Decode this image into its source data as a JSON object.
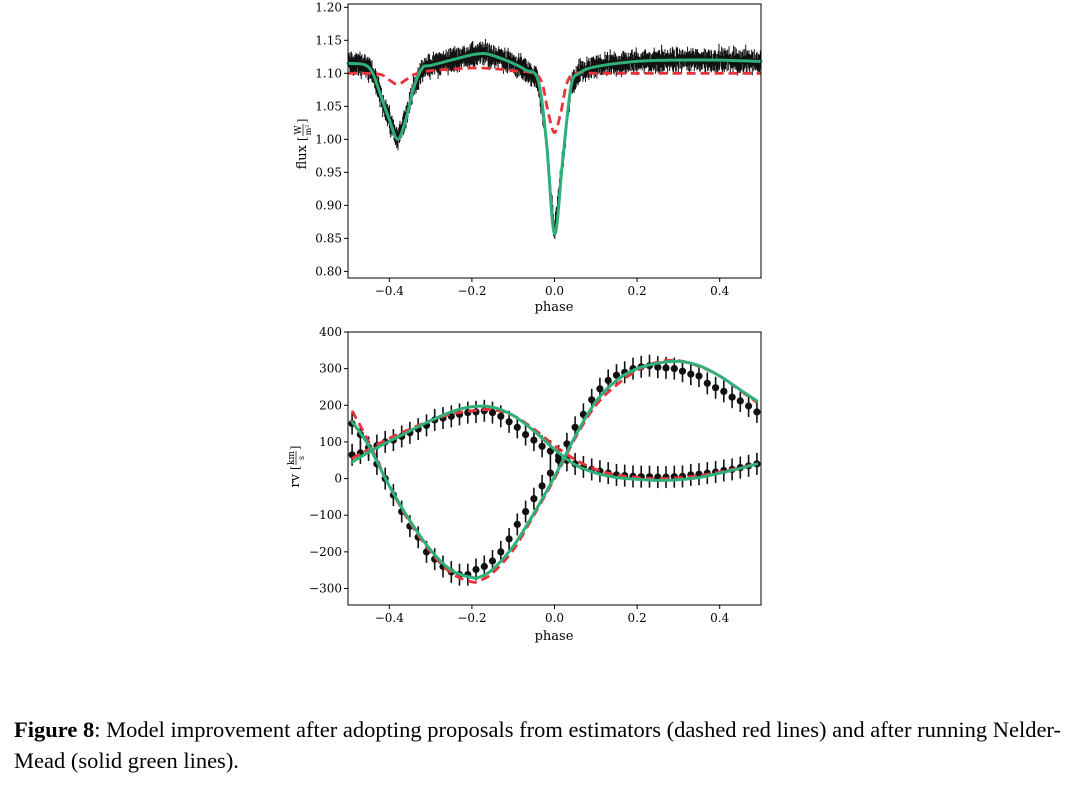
{
  "figure": {
    "caption_label": "Figure 8",
    "caption_text": ": Model improvement after adopting proposals from estimators (dashed red lines) and after running Nelder-Mead (solid green lines)."
  },
  "colors": {
    "estimator_model": "#e8323c",
    "nelder_mead_model": "#2fb07a",
    "observations": "#111111"
  },
  "chart_data": [
    {
      "type": "line",
      "xlabel": "phase",
      "ylabel": "flux [W/m²]",
      "ylabel_parts": {
        "name": "flux",
        "unit_num": "W",
        "unit_den": "m²"
      },
      "xlim": [
        -0.5,
        0.5
      ],
      "ylim": [
        0.79,
        1.205
      ],
      "xticks": [
        -0.4,
        -0.2,
        0.0,
        0.2,
        0.4
      ],
      "xtick_labels": [
        "−0.4",
        "−0.2",
        "0.0",
        "0.2",
        "0.4"
      ],
      "yticks": [
        0.8,
        0.85,
        0.9,
        0.95,
        1.0,
        1.05,
        1.1,
        1.15,
        1.2
      ],
      "ytick_labels": [
        "0.80",
        "0.85",
        "0.90",
        "0.95",
        "1.00",
        "1.05",
        "1.10",
        "1.15",
        "1.20"
      ],
      "grid": false,
      "series": [
        {
          "style": "dashed",
          "color": "#e8323c",
          "x": [
            -0.5,
            -0.46,
            -0.42,
            -0.4,
            -0.38,
            -0.36,
            -0.34,
            -0.3,
            -0.2,
            -0.15,
            -0.1,
            -0.05,
            -0.03,
            -0.015,
            0.0,
            0.015,
            0.03,
            0.05,
            0.1,
            0.2,
            0.3,
            0.4,
            0.5
          ],
          "y": [
            1.1,
            1.1,
            1.098,
            1.09,
            1.083,
            1.09,
            1.098,
            1.104,
            1.108,
            1.107,
            1.104,
            1.1,
            1.085,
            1.04,
            1.01,
            1.04,
            1.085,
            1.1,
            1.1,
            1.1,
            1.1,
            1.1,
            1.1
          ]
        },
        {
          "style": "solid",
          "color": "#2fb07a",
          "x": [
            -0.5,
            -0.46,
            -0.44,
            -0.42,
            -0.4,
            -0.38,
            -0.36,
            -0.34,
            -0.32,
            -0.3,
            -0.25,
            -0.2,
            -0.17,
            -0.14,
            -0.1,
            -0.07,
            -0.04,
            -0.02,
            0.0,
            0.02,
            0.04,
            0.06,
            0.1,
            0.2,
            0.3,
            0.4,
            0.5
          ],
          "y": [
            1.115,
            1.113,
            1.1,
            1.065,
            1.03,
            1.0,
            1.03,
            1.08,
            1.108,
            1.112,
            1.12,
            1.128,
            1.13,
            1.125,
            1.115,
            1.105,
            1.09,
            1.0,
            0.857,
            0.97,
            1.08,
            1.1,
            1.11,
            1.118,
            1.12,
            1.12,
            1.118
          ]
        }
      ],
      "observations": {
        "band": "noisy light curve, vertical error bars",
        "follows_series": 1,
        "scatter": 0.012
      }
    },
    {
      "type": "scatter",
      "xlabel": "phase",
      "ylabel": "rv [km/s]",
      "ylabel_parts": {
        "name": "rv",
        "unit_num": "km",
        "unit_den": "s"
      },
      "xlim": [
        -0.5,
        0.5
      ],
      "ylim": [
        -345,
        400
      ],
      "xticks": [
        -0.4,
        -0.2,
        0.0,
        0.2,
        0.4
      ],
      "xtick_labels": [
        "−0.4",
        "−0.2",
        "0.0",
        "0.2",
        "0.4"
      ],
      "yticks": [
        -300,
        -200,
        -100,
        0,
        100,
        200,
        300,
        400
      ],
      "ytick_labels": [
        "−300",
        "−200",
        "−100",
        "0",
        "100",
        "200",
        "300",
        "400"
      ],
      "grid": false,
      "series": [
        {
          "style": "dashed",
          "color": "#e8323c",
          "x": [
            -0.49,
            -0.45,
            -0.4,
            -0.35,
            -0.3,
            -0.25,
            -0.2,
            -0.18,
            -0.15,
            -0.1,
            -0.05,
            0.0,
            0.05,
            0.1,
            0.15,
            0.2,
            0.25,
            0.3,
            0.35,
            0.4,
            0.45,
            0.49
          ],
          "y": [
            185,
            100,
            -20,
            -120,
            -200,
            -258,
            -282,
            -278,
            -258,
            -195,
            -100,
            0,
            110,
            200,
            255,
            295,
            318,
            322,
            306,
            280,
            240,
            208
          ]
        },
        {
          "style": "dashed",
          "color": "#e8323c",
          "x": [
            -0.49,
            -0.45,
            -0.4,
            -0.35,
            -0.3,
            -0.25,
            -0.2,
            -0.15,
            -0.1,
            -0.05,
            0.0,
            0.05,
            0.1,
            0.15,
            0.2,
            0.25,
            0.3,
            0.35,
            0.4,
            0.45,
            0.49
          ],
          "y": [
            55,
            80,
            110,
            135,
            158,
            176,
            185,
            188,
            172,
            135,
            90,
            52,
            25,
            10,
            3,
            0,
            2,
            8,
            18,
            30,
            40
          ]
        },
        {
          "style": "solid",
          "color": "#2fb07a",
          "x": [
            -0.49,
            -0.45,
            -0.4,
            -0.35,
            -0.3,
            -0.25,
            -0.2,
            -0.18,
            -0.15,
            -0.1,
            -0.05,
            0.0,
            0.05,
            0.1,
            0.15,
            0.2,
            0.25,
            0.3,
            0.35,
            0.4,
            0.45,
            0.49
          ],
          "y": [
            155,
            90,
            -20,
            -115,
            -195,
            -250,
            -270,
            -268,
            -248,
            -185,
            -95,
            5,
            115,
            210,
            268,
            300,
            315,
            320,
            308,
            280,
            242,
            212
          ]
        },
        {
          "style": "solid",
          "color": "#2fb07a",
          "x": [
            -0.49,
            -0.45,
            -0.4,
            -0.35,
            -0.3,
            -0.25,
            -0.2,
            -0.15,
            -0.1,
            -0.05,
            0.0,
            0.05,
            0.1,
            0.15,
            0.2,
            0.25,
            0.3,
            0.35,
            0.4,
            0.45,
            0.49
          ],
          "y": [
            45,
            72,
            102,
            130,
            158,
            182,
            196,
            195,
            172,
            130,
            80,
            38,
            15,
            3,
            -2,
            -5,
            -3,
            3,
            15,
            28,
            40
          ]
        }
      ],
      "observations": {
        "primary": {
          "x": [
            -0.49,
            -0.47,
            -0.45,
            -0.43,
            -0.41,
            -0.39,
            -0.37,
            -0.35,
            -0.33,
            -0.31,
            -0.29,
            -0.27,
            -0.25,
            -0.23,
            -0.21,
            -0.19,
            -0.17,
            -0.15,
            -0.13,
            -0.11,
            -0.09,
            -0.07,
            -0.05,
            -0.03,
            -0.01,
            0.01,
            0.03,
            0.05,
            0.07,
            0.09,
            0.11,
            0.13,
            0.15,
            0.17,
            0.19,
            0.21,
            0.23,
            0.25,
            0.27,
            0.29,
            0.31,
            0.33,
            0.35,
            0.37,
            0.39,
            0.41,
            0.43,
            0.45,
            0.47,
            0.49
          ],
          "y": [
            150,
            120,
            85,
            40,
            0,
            -45,
            -90,
            -130,
            -160,
            -200,
            -220,
            -240,
            -255,
            -262,
            -262,
            -248,
            -240,
            -225,
            -200,
            -165,
            -125,
            -90,
            -55,
            -20,
            15,
            50,
            95,
            140,
            175,
            215,
            245,
            268,
            282,
            290,
            300,
            305,
            308,
            304,
            302,
            300,
            293,
            285,
            280,
            260,
            248,
            238,
            222,
            212,
            198,
            182
          ]
        },
        "secondary": {
          "x": [
            -0.49,
            -0.47,
            -0.45,
            -0.43,
            -0.41,
            -0.39,
            -0.37,
            -0.35,
            -0.33,
            -0.31,
            -0.29,
            -0.27,
            -0.25,
            -0.23,
            -0.21,
            -0.19,
            -0.17,
            -0.15,
            -0.13,
            -0.11,
            -0.09,
            -0.07,
            -0.05,
            -0.03,
            -0.01,
            0.01,
            0.03,
            0.05,
            0.07,
            0.09,
            0.11,
            0.13,
            0.15,
            0.17,
            0.19,
            0.21,
            0.23,
            0.25,
            0.27,
            0.29,
            0.31,
            0.33,
            0.35,
            0.37,
            0.39,
            0.41,
            0.43,
            0.45,
            0.47,
            0.49
          ],
          "y": [
            65,
            70,
            78,
            90,
            100,
            105,
            115,
            125,
            135,
            145,
            160,
            165,
            170,
            175,
            180,
            182,
            185,
            180,
            170,
            155,
            140,
            120,
            105,
            88,
            75,
            62,
            50,
            40,
            32,
            25,
            20,
            15,
            10,
            8,
            6,
            5,
            5,
            4,
            4,
            5,
            6,
            10,
            12,
            15,
            18,
            22,
            25,
            30,
            35,
            40
          ]
        }
      }
    }
  ]
}
